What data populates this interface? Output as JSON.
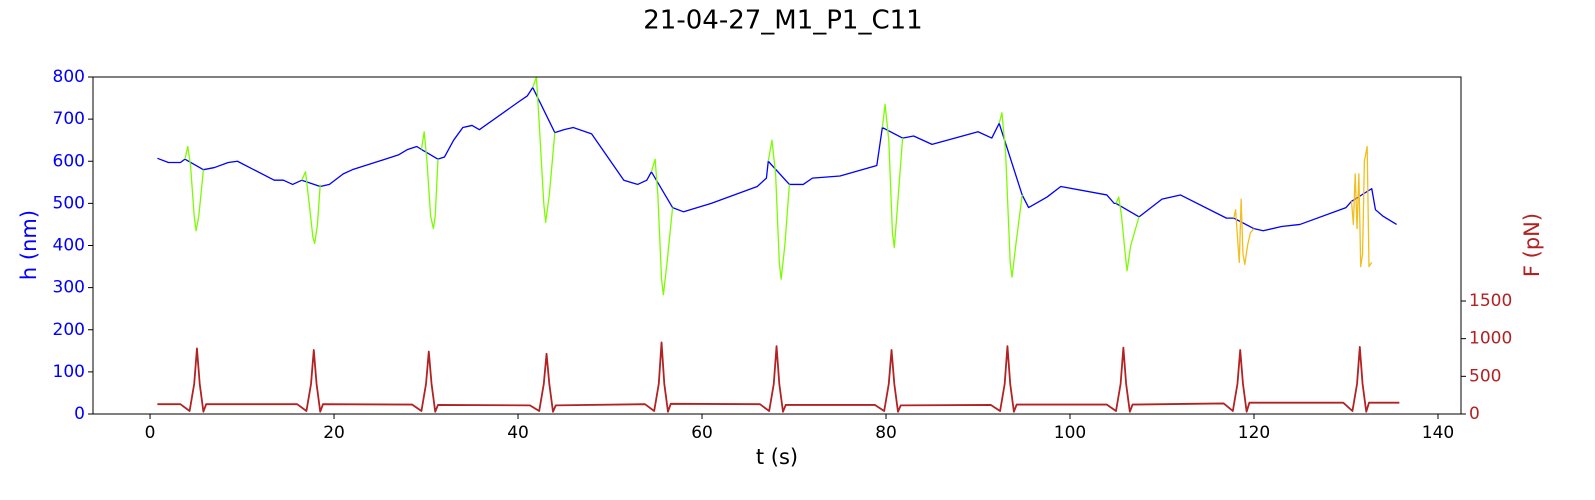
{
  "chart_data": {
    "type": "line",
    "title": "21-04-27_M1_P1_C11",
    "x_label": "t (s)",
    "y_label": "h (nm)",
    "y2_label": "F (pN)",
    "xlim": [
      -6.2,
      142.5
    ],
    "xticks": [
      0,
      20,
      40,
      60,
      80,
      100,
      120,
      140
    ],
    "ylim": [
      0,
      800
    ],
    "yticks": [
      0,
      100,
      200,
      300,
      400,
      500,
      600,
      700,
      800
    ],
    "y2lim": [
      0,
      4473
    ],
    "y2ticks": [
      0,
      500,
      1000,
      1500
    ],
    "series": [
      {
        "color": "#0000ff",
        "x": [
          0.8,
          2,
          3.3,
          3.8,
          5.8,
          7,
          8.5,
          9.5,
          13.5,
          14.5,
          15.5,
          16.5,
          18.5,
          19.5,
          21,
          22,
          27,
          28,
          29,
          29.5,
          31.3,
          32,
          33,
          34,
          35,
          35.8,
          40,
          41,
          41.6,
          44,
          45,
          46,
          48,
          51.5,
          53,
          54,
          54.5,
          56.8,
          58,
          61,
          66,
          67,
          67.2,
          69.5,
          71,
          72,
          75,
          79,
          79.6,
          81.8,
          83,
          85,
          90,
          91.5,
          92.3,
          94.8,
          95.5,
          97.5,
          99,
          104,
          104.8,
          105.0,
          107.5,
          110,
          112,
          117,
          117.8,
          120,
          121,
          123,
          125,
          130,
          130.6,
          132.8,
          133.2,
          134,
          135.5
        ],
        "values": [
          607,
          597,
          597,
          605,
          580,
          585,
          597,
          600,
          555,
          555,
          545,
          555,
          540,
          545,
          570,
          580,
          615,
          628,
          635,
          628,
          605,
          610,
          650,
          680,
          685,
          675,
          740,
          755,
          775,
          668,
          675,
          680,
          665,
          555,
          545,
          555,
          575,
          490,
          480,
          500,
          540,
          560,
          600,
          545,
          545,
          560,
          565,
          590,
          680,
          655,
          660,
          640,
          670,
          655,
          690,
          520,
          490,
          515,
          540,
          520,
          500,
          500,
          468,
          510,
          520,
          465,
          465,
          440,
          435,
          445,
          450,
          490,
          505,
          535,
          485,
          470,
          450
        ]
      },
      {
        "color": "#7cfc00",
        "x": [
          3.8,
          4.1,
          4.4,
          4.8,
          5.0,
          5.3,
          5.8,
          10,
          16.5,
          16.9,
          17.3,
          17.7,
          17.9,
          18.2,
          18.5,
          24,
          29.5,
          29.8,
          30.1,
          30.5,
          30.8,
          31.0,
          31.3,
          36,
          41.6,
          42.0,
          42.3,
          42.8,
          43.0,
          43.4,
          44.0,
          49,
          54.5,
          54.9,
          55.2,
          55.6,
          55.8,
          56.2,
          56.8,
          62,
          67.2,
          67.6,
          68.0,
          68.4,
          68.6,
          69.0,
          69.5,
          74,
          79.6,
          79.9,
          80.3,
          80.7,
          80.9,
          81.2,
          81.8,
          86,
          92.3,
          92.6,
          93.0,
          93.5,
          93.7,
          94.1,
          94.8,
          100,
          105.0,
          105.3,
          105.6,
          106.0,
          106.2,
          106.6,
          107.5
        ],
        "values": [
          605,
          635,
          590,
          470,
          435,
          470,
          580,
          null,
          555,
          575,
          500,
          420,
          405,
          450,
          545,
          null,
          628,
          670,
          600,
          470,
          440,
          470,
          605,
          null,
          775,
          800,
          690,
          500,
          455,
          520,
          668,
          null,
          575,
          605,
          520,
          320,
          283,
          360,
          490,
          null,
          600,
          650,
          570,
          360,
          320,
          400,
          545,
          null,
          680,
          735,
          650,
          430,
          395,
          480,
          655,
          null,
          690,
          715,
          620,
          360,
          325,
          400,
          520,
          null,
          500,
          515,
          470,
          380,
          340,
          400,
          468
        ]
      },
      {
        "color": "#f2be1e",
        "x": [
          117.8,
          118.0,
          118.2,
          118.4,
          118.6,
          118.8,
          119.0,
          119.3,
          119.6,
          120.0,
          125,
          130.6,
          130.8,
          131.0,
          131.2,
          131.4,
          131.6,
          131.8,
          132.0,
          132.3,
          132.5,
          132.8
        ],
        "values": [
          465,
          485,
          420,
          360,
          510,
          380,
          355,
          400,
          430,
          440,
          null,
          505,
          450,
          570,
          440,
          570,
          350,
          380,
          600,
          635,
          350,
          360
        ]
      },
      {
        "color": "#b22222",
        "axis": "y2",
        "x": [
          0.8,
          3.3,
          4.3,
          4.8,
          5.1,
          5.4,
          5.8,
          6.1,
          16.0,
          17.0,
          17.5,
          17.8,
          18.1,
          18.5,
          18.8,
          28.5,
          29.5,
          30.0,
          30.3,
          30.6,
          31.0,
          31.3,
          41.3,
          42.3,
          42.8,
          43.1,
          43.4,
          43.8,
          44.1,
          53.8,
          54.8,
          55.3,
          55.6,
          55.9,
          56.3,
          56.6,
          66.3,
          67.3,
          67.8,
          68.1,
          68.4,
          68.8,
          69.1,
          78.8,
          79.8,
          80.3,
          80.6,
          80.9,
          81.3,
          81.6,
          91.4,
          92.4,
          92.9,
          93.2,
          93.5,
          93.9,
          94.2,
          104.0,
          105.0,
          105.5,
          105.8,
          106.1,
          106.5,
          106.8,
          116.7,
          117.7,
          118.2,
          118.5,
          118.8,
          119.2,
          119.5,
          129.7,
          130.7,
          131.2,
          131.5,
          131.8,
          132.2,
          132.5,
          135.8
        ],
        "values": [
          130,
          130,
          40,
          400,
          870,
          400,
          30,
          130,
          130,
          40,
          400,
          850,
          400,
          30,
          130,
          125,
          40,
          400,
          830,
          400,
          30,
          120,
          115,
          40,
          400,
          800,
          400,
          30,
          115,
          130,
          40,
          400,
          950,
          400,
          30,
          135,
          130,
          40,
          400,
          900,
          400,
          30,
          120,
          120,
          40,
          400,
          850,
          400,
          30,
          115,
          120,
          40,
          400,
          900,
          400,
          30,
          125,
          125,
          40,
          400,
          880,
          400,
          30,
          125,
          140,
          40,
          400,
          850,
          400,
          30,
          150,
          150,
          40,
          400,
          890,
          400,
          30,
          150,
          150
        ]
      }
    ]
  }
}
